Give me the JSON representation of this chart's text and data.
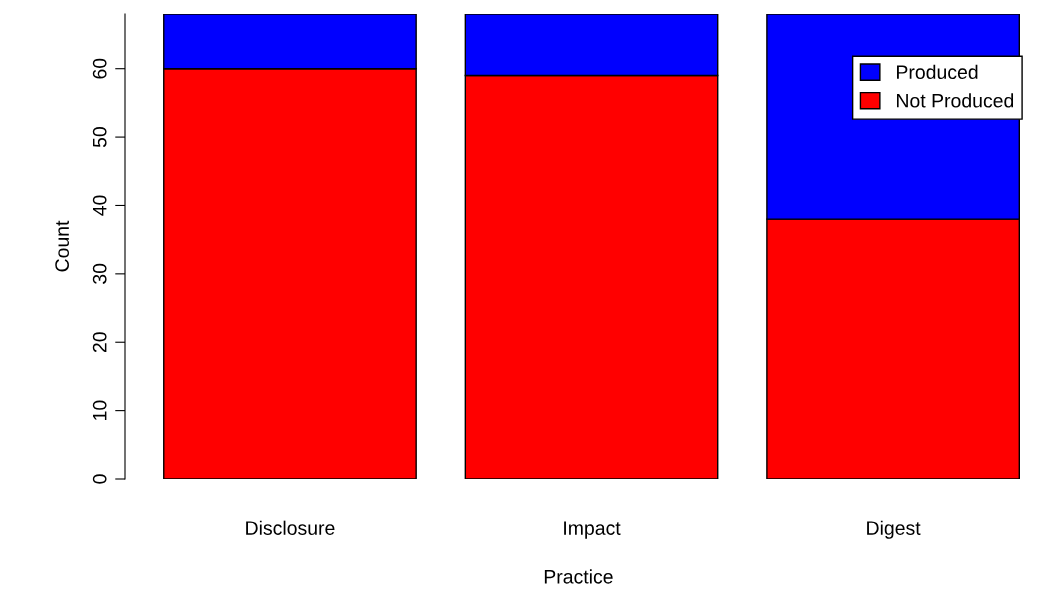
{
  "chart_data": {
    "type": "bar",
    "stacked": true,
    "xlabel": "Practice",
    "ylabel": "Count",
    "categories": [
      "Disclosure",
      "Impact",
      "Digest"
    ],
    "series": [
      {
        "name": "Not Produced",
        "color": "#ff0000",
        "values": [
          60,
          59,
          38
        ]
      },
      {
        "name": "Produced",
        "color": "#0000ff",
        "values": [
          8,
          9,
          30
        ]
      }
    ],
    "ylim": [
      0,
      68
    ],
    "yticks": [
      0,
      10,
      20,
      30,
      40,
      50,
      60
    ],
    "grid": false,
    "legend": "top right"
  }
}
